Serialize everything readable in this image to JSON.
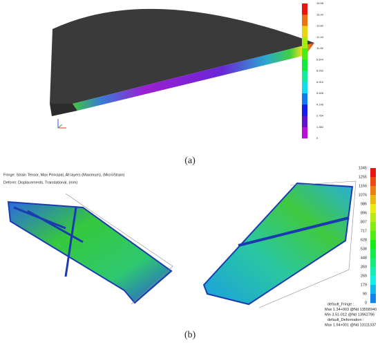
{
  "panel_a": {
    "colorbar_labels": [
      "16.58",
      "15.20",
      "13.82",
      "12.44",
      "11.06",
      "9.674",
      "8.292",
      "6.910",
      "5.528",
      "4.146",
      "2.764",
      "1.382",
      "0"
    ],
    "caption": "(a)"
  },
  "panel_b": {
    "header": [
      "Fringe: Strain Tensor, Max Principal, All layers (Maximum), (MicroStrain)",
      "Deform: Displacements, Translational, (mm)"
    ],
    "colorbar_labels": [
      "1345",
      "1255",
      "1166",
      "1076",
      "986",
      "896",
      "807",
      "717",
      "628",
      "538",
      "448",
      "359",
      "269",
      "179",
      "90",
      "0"
    ],
    "legend": [
      "default_Fringe :",
      "Max 1.34+003 @Nd 13558940",
      "Min 3.51-012 @Nd 13962786",
      "default_Deformation :",
      "Max 1.94+001 @Nd 13111337"
    ],
    "caption": "(b)"
  }
}
